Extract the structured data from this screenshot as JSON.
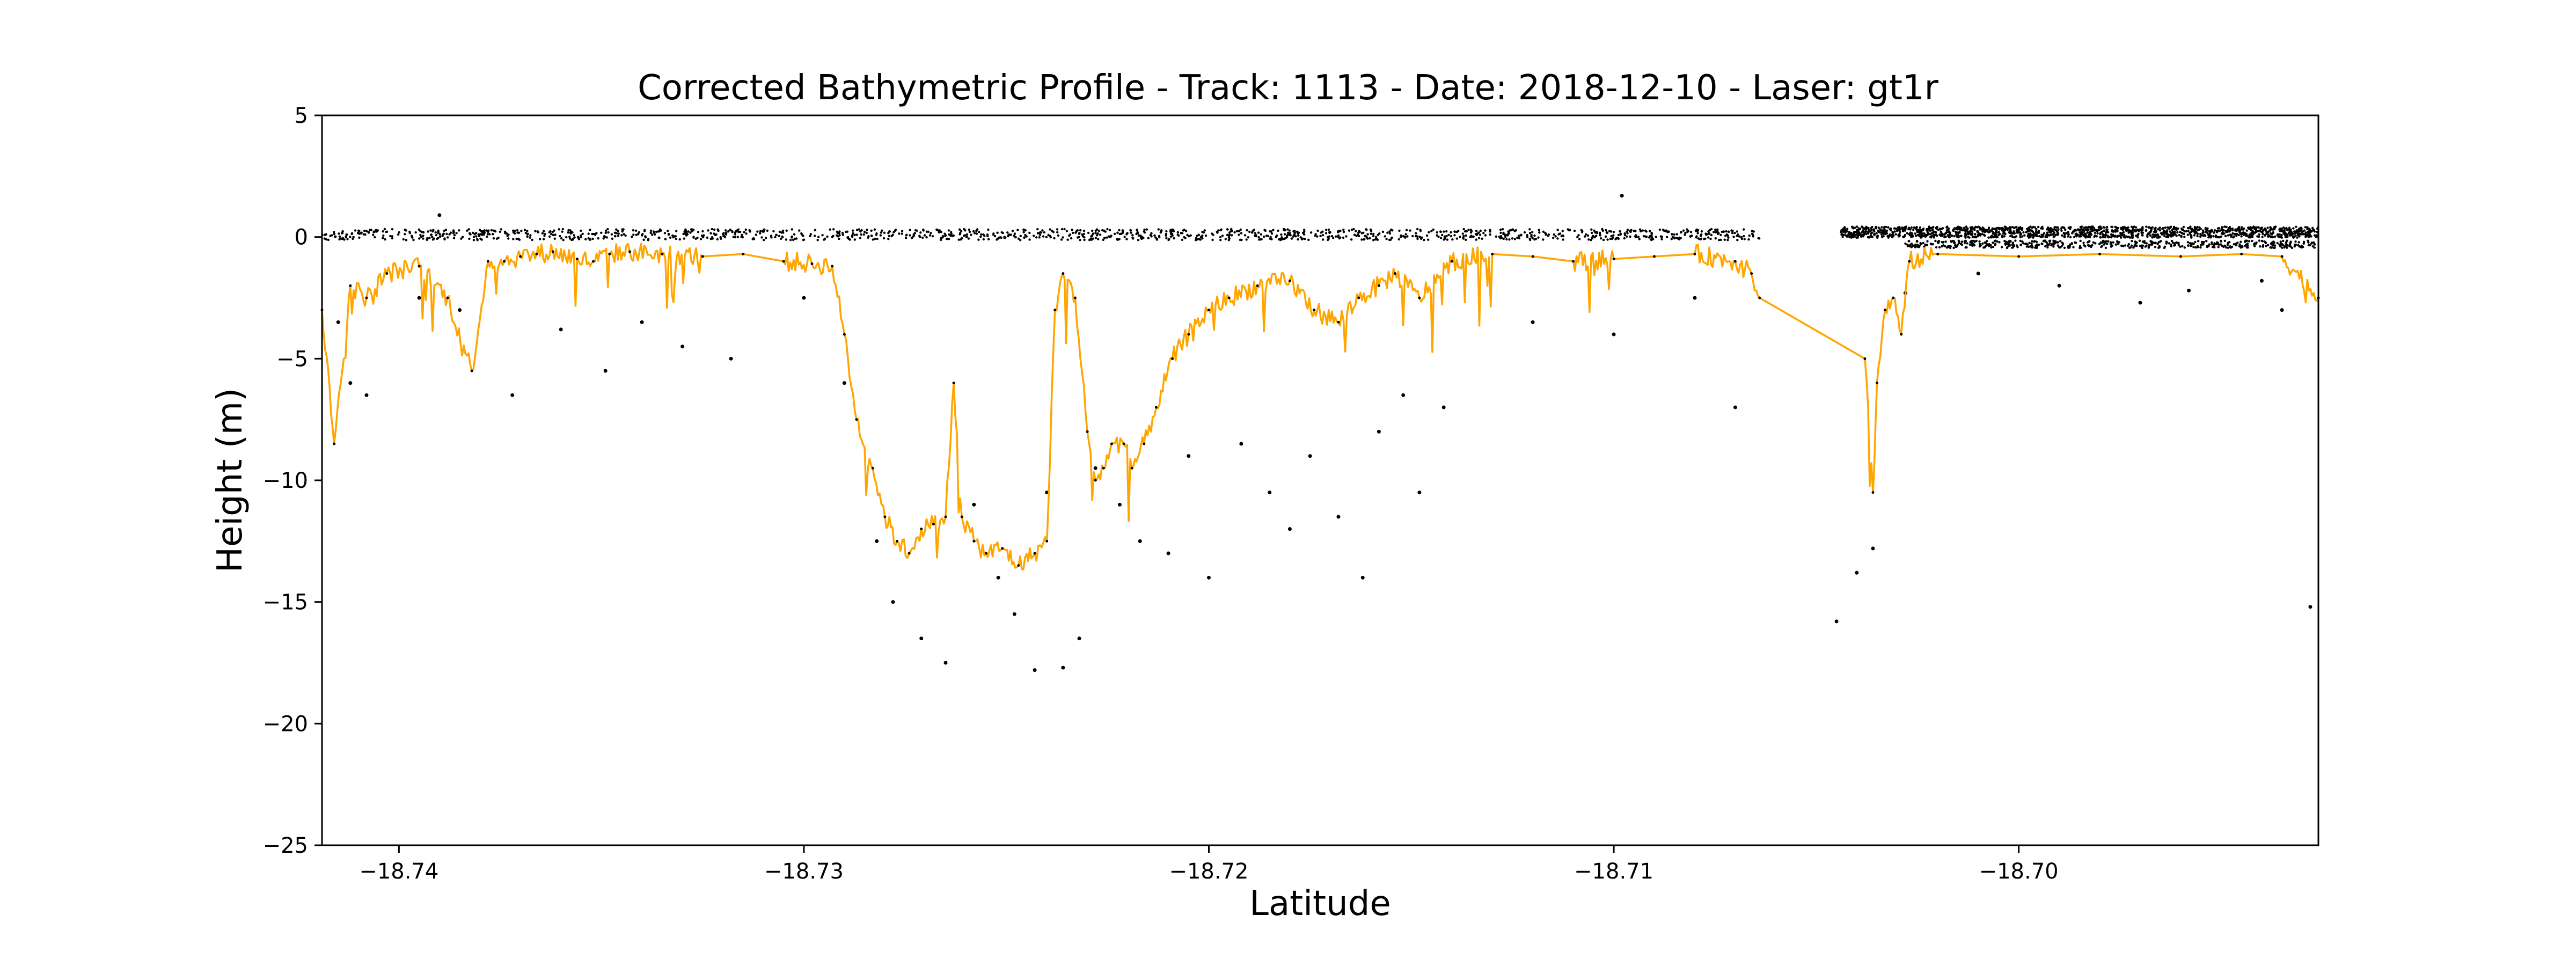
{
  "chart_data": {
    "type": "scatter",
    "title": "Corrected Bathymetric Profile - Track: 1113 - Date: 2018-12-10 - Laser: gt1r",
    "xlabel": "Latitude",
    "ylabel": "Height (m)",
    "xlim": [
      -18.7419,
      -18.6926
    ],
    "ylim": [
      -25,
      5
    ],
    "xticks": [
      -18.74,
      -18.73,
      -18.72,
      -18.71,
      -18.7
    ],
    "xtick_labels": [
      "−18.74",
      "−18.73",
      "−18.72",
      "−18.71",
      "−18.70"
    ],
    "yticks": [
      5,
      0,
      -5,
      -10,
      -15,
      -20,
      -25
    ],
    "ytick_labels": [
      "5",
      "0",
      "−5",
      "−10",
      "−15",
      "−20",
      "−25"
    ],
    "grid": false,
    "legend": "none",
    "colors": {
      "photons": "#000000",
      "bathymetry": "#FFA500"
    },
    "series": [
      {
        "kind": "scatter",
        "color": "#000000",
        "surface_segments": [
          {
            "x": [
              -18.7419,
              -18.7064
            ],
            "y": 0.1
          },
          {
            "x": [
              -18.7044,
              -18.6926
            ],
            "y": 0.2
          }
        ],
        "lower_surface_segment": {
          "x": [
            -18.7028,
            -18.6926
          ],
          "y": -0.3
        },
        "scattered_points": [
          [
            -18.7415,
            -3.5
          ],
          [
            -18.7412,
            -6.0
          ],
          [
            -18.7408,
            -6.5
          ],
          [
            -18.7395,
            -2.5
          ],
          [
            -18.7385,
            -3.0
          ],
          [
            -18.7372,
            -6.5
          ],
          [
            -18.736,
            -3.8
          ],
          [
            -18.7349,
            -5.5
          ],
          [
            -18.734,
            -3.5
          ],
          [
            -18.733,
            -4.5
          ],
          [
            -18.7318,
            -5.0
          ],
          [
            -18.73,
            -2.5
          ],
          [
            -18.729,
            -6.0
          ],
          [
            -18.7282,
            -12.5
          ],
          [
            -18.7278,
            -15.0
          ],
          [
            -18.7271,
            -16.5
          ],
          [
            -18.7265,
            -17.5
          ],
          [
            -18.7258,
            -11.0
          ],
          [
            -18.7252,
            -14.0
          ],
          [
            -18.7248,
            -15.5
          ],
          [
            -18.7243,
            -17.8
          ],
          [
            -18.724,
            -10.5
          ],
          [
            -18.7236,
            -17.7
          ],
          [
            -18.7232,
            -16.5
          ],
          [
            -18.7228,
            -9.5
          ],
          [
            -18.7222,
            -11.0
          ],
          [
            -18.7217,
            -12.5
          ],
          [
            -18.721,
            -13.0
          ],
          [
            -18.7205,
            -9.0
          ],
          [
            -18.72,
            -14.0
          ],
          [
            -18.7192,
            -8.5
          ],
          [
            -18.7185,
            -10.5
          ],
          [
            -18.718,
            -12.0
          ],
          [
            -18.7175,
            -9.0
          ],
          [
            -18.7168,
            -11.5
          ],
          [
            -18.7162,
            -14.0
          ],
          [
            -18.7158,
            -8.0
          ],
          [
            -18.7152,
            -6.5
          ],
          [
            -18.7148,
            -10.5
          ],
          [
            -18.7142,
            -7.0
          ],
          [
            -18.712,
            -3.5
          ],
          [
            -18.71,
            -4.0
          ],
          [
            -18.708,
            -2.5
          ],
          [
            -18.707,
            -7.0
          ],
          [
            -18.7098,
            1.7
          ],
          [
            -18.739,
            0.9
          ],
          [
            -18.7036,
            -12.8
          ],
          [
            -18.704,
            -13.8
          ],
          [
            -18.7045,
            -15.8
          ],
          [
            -18.7028,
            -2.3
          ],
          [
            -18.701,
            -1.5
          ],
          [
            -18.699,
            -2.0
          ],
          [
            -18.697,
            -2.7
          ],
          [
            -18.6958,
            -2.2
          ],
          [
            -18.694,
            -1.8
          ],
          [
            -18.6935,
            -3.0
          ],
          [
            -18.6928,
            -15.2
          ]
        ]
      },
      {
        "kind": "line",
        "color": "#FFA500",
        "x": [
          -18.7419,
          -18.7416,
          -18.7412,
          -18.7408,
          -18.7403,
          -18.7395,
          -18.7388,
          -18.7382,
          -18.7378,
          -18.7374,
          -18.737,
          -18.7366,
          -18.7362,
          -18.7356,
          -18.7352,
          -18.7348,
          -18.7343,
          -18.7335,
          -18.7325,
          -18.7315,
          -18.7305,
          -18.7298,
          -18.7293,
          -18.729,
          -18.7287,
          -18.7283,
          -18.728,
          -18.7277,
          -18.7274,
          -18.7271,
          -18.7268,
          -18.7265,
          -18.7263,
          -18.7261,
          -18.7258,
          -18.7255,
          -18.7251,
          -18.7247,
          -18.7243,
          -18.724,
          -18.7238,
          -18.7236,
          -18.7233,
          -18.723,
          -18.7228,
          -18.7226,
          -18.7224,
          -18.7221,
          -18.7219,
          -18.7216,
          -18.7213,
          -18.7209,
          -18.7205,
          -18.72,
          -18.7195,
          -18.7188,
          -18.718,
          -18.7174,
          -18.7168,
          -18.7163,
          -18.7158,
          -18.7154,
          -18.7148,
          -18.714,
          -18.713,
          -18.712,
          -18.711,
          -18.71,
          -18.709,
          -18.708,
          -18.707,
          -18.7066,
          -18.7064,
          -18.7038,
          -18.7036,
          -18.7035,
          -18.7033,
          -18.7031,
          -18.7029,
          -18.7027,
          -18.702,
          -18.7,
          -18.698,
          -18.696,
          -18.6945,
          -18.6935,
          -18.6926
        ],
        "y": [
          -3.0,
          -8.5,
          -2.0,
          -2.5,
          -1.5,
          -1.2,
          -2.5,
          -5.5,
          -1.0,
          -1.0,
          -0.8,
          -0.7,
          -0.6,
          -0.9,
          -1.0,
          -0.7,
          -0.6,
          -0.7,
          -0.8,
          -0.7,
          -1.0,
          -1.1,
          -1.2,
          -4.0,
          -7.5,
          -9.5,
          -11.5,
          -12.5,
          -13.0,
          -12.0,
          -11.8,
          -11.5,
          -6.0,
          -11.5,
          -12.5,
          -13.0,
          -12.8,
          -13.5,
          -13.0,
          -12.5,
          -3.0,
          -1.5,
          -2.5,
          -8.0,
          -10.0,
          -9.5,
          -8.5,
          -8.5,
          -9.5,
          -8.5,
          -7.0,
          -5.0,
          -4.0,
          -3.0,
          -2.5,
          -2.0,
          -1.8,
          -3.0,
          -3.5,
          -2.5,
          -2.0,
          -1.5,
          -2.5,
          -1.0,
          -0.7,
          -0.8,
          -1.0,
          -0.9,
          -0.8,
          -0.7,
          -1.0,
          -1.5,
          -2.5,
          -5.0,
          -10.5,
          -6.0,
          -3.0,
          -2.5,
          -4.0,
          -1.0,
          -0.7,
          -0.8,
          -0.7,
          -0.8,
          -0.7,
          -0.8,
          -2.5
        ]
      }
    ]
  }
}
